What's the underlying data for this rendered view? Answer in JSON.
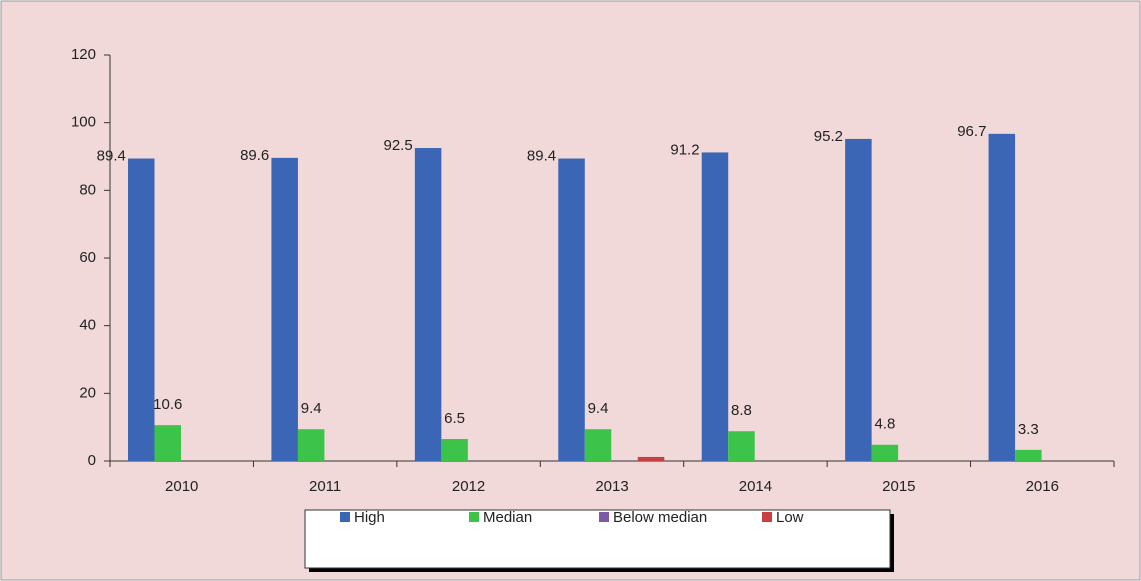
{
  "chart_data": {
    "type": "bar",
    "categories": [
      "2010",
      "2011",
      "2012",
      "2013",
      "2014",
      "2015",
      "2016"
    ],
    "series": [
      {
        "name": "High",
        "color": "#3a66b5",
        "values": [
          89.4,
          89.6,
          92.5,
          89.4,
          91.2,
          95.2,
          96.7
        ],
        "data_labels": true
      },
      {
        "name": "Median",
        "color": "#3cc44a",
        "values": [
          10.6,
          9.4,
          6.5,
          9.4,
          8.8,
          4.8,
          3.3
        ],
        "data_labels": true
      },
      {
        "name": "Below median",
        "color": "#7d5aa6",
        "values": [
          0,
          0,
          0,
          0,
          0,
          0,
          0
        ],
        "data_labels": false
      },
      {
        "name": "Low",
        "color": "#c94040",
        "values": [
          0,
          0,
          0,
          1.2,
          0,
          0,
          0
        ],
        "data_labels": false
      }
    ],
    "ylim": [
      0,
      120
    ],
    "yticks": [
      0,
      20,
      40,
      60,
      80,
      100,
      120
    ],
    "grid": false,
    "legend": "bottom"
  }
}
